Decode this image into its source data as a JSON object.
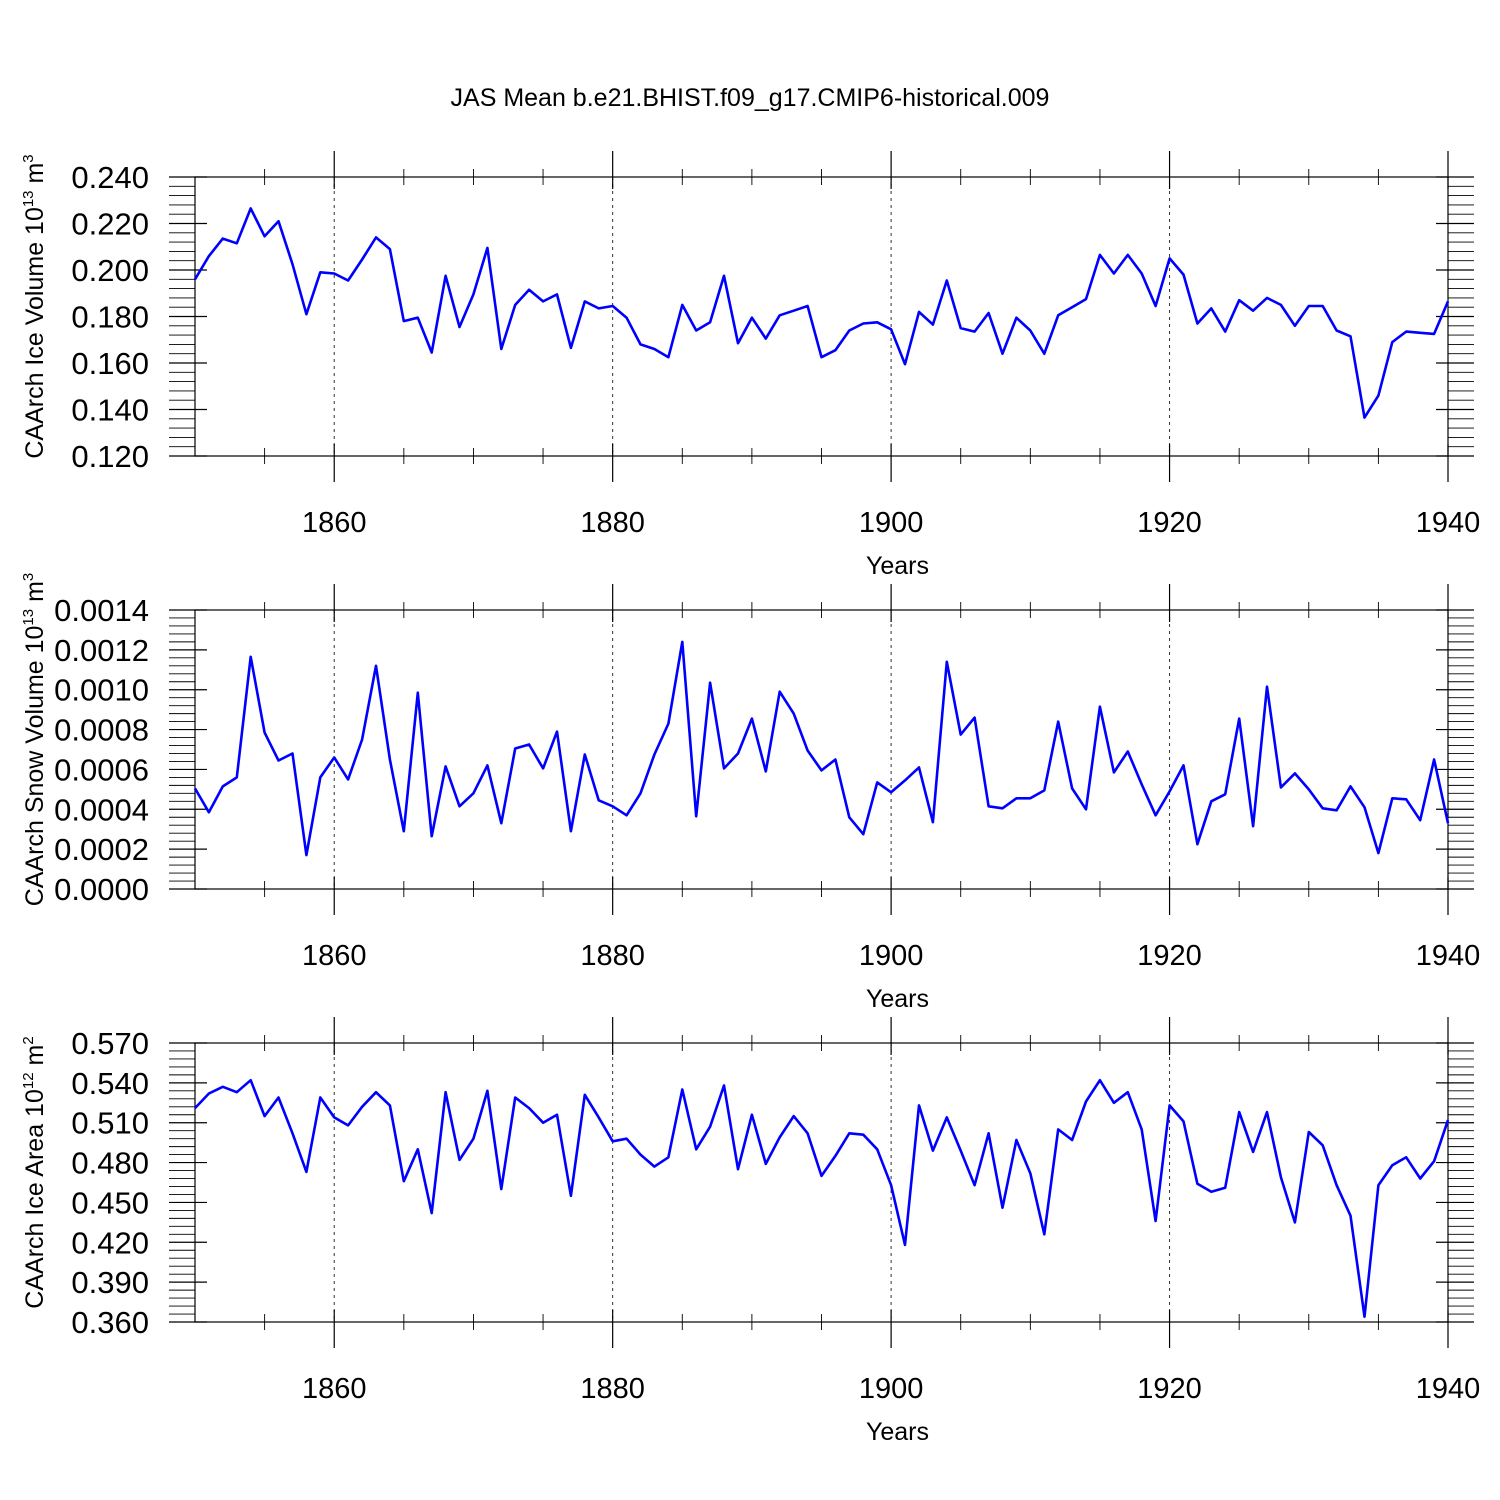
{
  "title": "JAS Mean b.e21.BHIST.f09_g17.CMIP6-historical.009",
  "colors": {
    "line": "#0000ff",
    "axis": "#000000"
  },
  "chart_data": [
    {
      "type": "line",
      "ylabel_base": "CAArch Ice Volume 10",
      "ylabel_exp": "13",
      "ylabel_unit": " m",
      "ylabel_unit_exp": "3",
      "xlabel": "Years",
      "xlim": [
        1850,
        1940
      ],
      "ylim": [
        0.12,
        0.24
      ],
      "xticks": [
        1860,
        1880,
        1900,
        1920,
        1940
      ],
      "yticks": [
        0.12,
        0.14,
        0.16,
        0.18,
        0.2,
        0.22,
        0.24
      ],
      "ytick_labels": [
        "0.120",
        "0.140",
        "0.160",
        "0.180",
        "0.200",
        "0.220",
        "0.240"
      ],
      "grid": "dashed vertical at major x ticks",
      "x_start": 1850,
      "values": [
        0.196,
        0.206,
        0.2135,
        0.2115,
        0.2265,
        0.2145,
        0.221,
        0.2025,
        0.181,
        0.199,
        0.1985,
        0.1955,
        0.2045,
        0.214,
        0.209,
        0.178,
        0.1795,
        0.1645,
        0.1975,
        0.1755,
        0.1895,
        0.2095,
        0.166,
        0.185,
        0.1915,
        0.1865,
        0.1895,
        0.1665,
        0.1865,
        0.1835,
        0.1845,
        0.1795,
        0.168,
        0.166,
        0.1625,
        0.185,
        0.174,
        0.1775,
        0.1975,
        0.1685,
        0.1795,
        0.1705,
        0.1805,
        0.1825,
        0.1845,
        0.1625,
        0.1655,
        0.174,
        0.177,
        0.1775,
        0.1745,
        0.1595,
        0.182,
        0.1765,
        0.1955,
        0.175,
        0.1735,
        0.1815,
        0.164,
        0.1795,
        0.174,
        0.164,
        0.1805,
        0.184,
        0.1875,
        0.2065,
        0.1985,
        0.2065,
        0.1985,
        0.1845,
        0.205,
        0.198,
        0.177,
        0.1835,
        0.1735,
        0.187,
        0.1825,
        0.188,
        0.185,
        0.176,
        0.1845,
        0.1845,
        0.174,
        0.1715,
        0.1365,
        0.146,
        0.169,
        0.1735,
        0.173,
        0.1725,
        0.1865
      ]
    },
    {
      "type": "line",
      "ylabel_base": "CAArch Snow Volume 10",
      "ylabel_exp": "13",
      "ylabel_unit": " m",
      "ylabel_unit_exp": "3",
      "xlabel": "Years",
      "xlim": [
        1850,
        1940
      ],
      "ylim": [
        0.0,
        0.0014
      ],
      "xticks": [
        1860,
        1880,
        1900,
        1920,
        1940
      ],
      "yticks": [
        0.0,
        0.0002,
        0.0004,
        0.0006,
        0.0008,
        0.001,
        0.0012,
        0.0014
      ],
      "ytick_labels": [
        "0.0000",
        "0.0002",
        "0.0004",
        "0.0006",
        "0.0008",
        "0.0010",
        "0.0012",
        "0.0014"
      ],
      "grid": "dashed vertical at major x ticks",
      "x_start": 1850,
      "values": [
        0.000505,
        0.000385,
        0.000515,
        0.00056,
        0.001165,
        0.000785,
        0.000645,
        0.00068,
        0.00017,
        0.00056,
        0.00066,
        0.00055,
        0.00075,
        0.00112,
        0.00065,
        0.00029,
        0.000985,
        0.000265,
        0.000615,
        0.000415,
        0.00048,
        0.00062,
        0.00033,
        0.000705,
        0.000725,
        0.000605,
        0.00079,
        0.00029,
        0.000675,
        0.000445,
        0.000415,
        0.00037,
        0.00048,
        0.000675,
        0.00083,
        0.00124,
        0.000365,
        0.001035,
        0.000605,
        0.00068,
        0.000855,
        0.00059,
        0.00099,
        0.00088,
        0.000695,
        0.000595,
        0.00065,
        0.00036,
        0.000275,
        0.000535,
        0.000485,
        0.000545,
        0.00061,
        0.000335,
        0.00114,
        0.000775,
        0.00086,
        0.000415,
        0.000405,
        0.000455,
        0.000455,
        0.000495,
        0.00084,
        0.000505,
        0.0004,
        0.000915,
        0.000585,
        0.00069,
        0.000525,
        0.00037,
        0.00049,
        0.00062,
        0.000225,
        0.00044,
        0.000475,
        0.000855,
        0.000315,
        0.001015,
        0.00051,
        0.00058,
        0.0005,
        0.000405,
        0.000395,
        0.000515,
        0.00041,
        0.00018,
        0.000455,
        0.00045,
        0.000345,
        0.00065,
        0.00033
      ]
    },
    {
      "type": "line",
      "ylabel_base": "CAArch Ice Area 10",
      "ylabel_exp": "12",
      "ylabel_unit": " m",
      "ylabel_unit_exp": "2",
      "xlabel": "Years",
      "xlim": [
        1850,
        1940
      ],
      "ylim": [
        0.36,
        0.57
      ],
      "xticks": [
        1860,
        1880,
        1900,
        1920,
        1940
      ],
      "yticks": [
        0.36,
        0.39,
        0.42,
        0.45,
        0.48,
        0.51,
        0.54,
        0.57
      ],
      "ytick_labels": [
        "0.360",
        "0.390",
        "0.420",
        "0.450",
        "0.480",
        "0.510",
        "0.540",
        "0.570"
      ],
      "grid": "dashed vertical at major x ticks",
      "x_start": 1850,
      "values": [
        0.521,
        0.532,
        0.537,
        0.533,
        0.542,
        0.515,
        0.529,
        0.502,
        0.473,
        0.529,
        0.514,
        0.508,
        0.522,
        0.533,
        0.523,
        0.466,
        0.49,
        0.442,
        0.533,
        0.482,
        0.498,
        0.534,
        0.46,
        0.529,
        0.521,
        0.51,
        0.516,
        0.455,
        0.531,
        0.514,
        0.496,
        0.498,
        0.486,
        0.477,
        0.484,
        0.535,
        0.49,
        0.507,
        0.538,
        0.475,
        0.516,
        0.479,
        0.499,
        0.515,
        0.502,
        0.47,
        0.485,
        0.502,
        0.501,
        0.49,
        0.463,
        0.418,
        0.523,
        0.489,
        0.514,
        0.489,
        0.463,
        0.502,
        0.446,
        0.497,
        0.472,
        0.426,
        0.505,
        0.497,
        0.526,
        0.542,
        0.525,
        0.533,
        0.505,
        0.436,
        0.523,
        0.511,
        0.464,
        0.458,
        0.461,
        0.518,
        0.488,
        0.518,
        0.469,
        0.435,
        0.503,
        0.493,
        0.463,
        0.44,
        0.364,
        0.463,
        0.478,
        0.484,
        0.468,
        0.481,
        0.512
      ]
    }
  ]
}
